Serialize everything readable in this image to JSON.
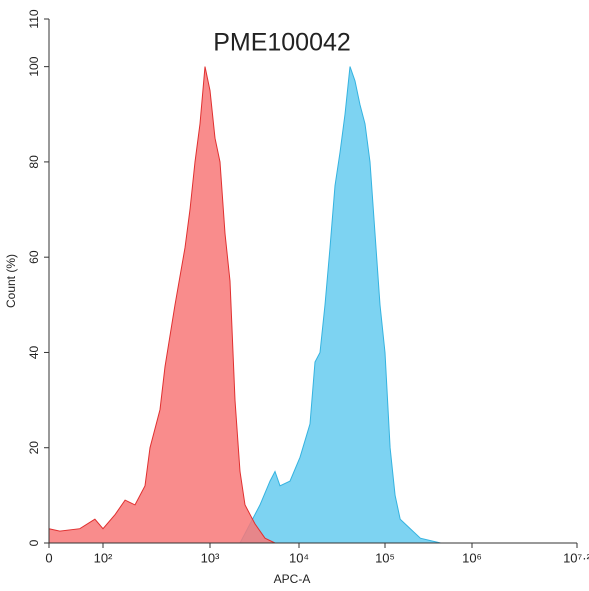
{
  "chart_data": {
    "type": "area",
    "title": "PME100042",
    "xlabel": "APC-A",
    "ylabel": "Count (%)",
    "xscale": "biexponential",
    "xlim": [
      0,
      15848932
    ],
    "xticks": [
      0,
      {
        "value": 100,
        "label": "10²"
      },
      {
        "value": 1000,
        "label": "10³"
      },
      {
        "value": 10000,
        "label": "10⁴"
      },
      {
        "value": 100000,
        "label": "10⁵"
      },
      {
        "value": 1000000,
        "label": "10⁶"
      },
      {
        "value": 15848932,
        "label": "10⁷·²"
      }
    ],
    "ylim": [
      0,
      110
    ],
    "yticks": [
      0,
      20,
      40,
      60,
      80,
      100,
      110
    ],
    "series": [
      {
        "color": "#7dd3f2",
        "edge": "#35b3e0",
        "x": [
          2174,
          3650,
          4720,
          5370,
          6120,
          7920,
          10270,
          13430,
          15350,
          17550,
          20060,
          22930,
          26210,
          29970,
          34260,
          39160,
          44770,
          51180,
          58510,
          66890,
          76480,
          87420,
          100000,
          114300,
          130700,
          149400,
          195300,
          255300,
          333700,
          436200
        ],
        "values": [
          0,
          8,
          13,
          15,
          12,
          13,
          18,
          25,
          38,
          40,
          50,
          62,
          75,
          82,
          90,
          100,
          97,
          92,
          88,
          80,
          65,
          50,
          40,
          20,
          10,
          5,
          3,
          1,
          0.5,
          0
        ]
      },
      {
        "color": "#f87878",
        "edge": "#e03030",
        "x": [
          0,
          20,
          57,
          85,
          100,
          130,
          161,
          199,
          247,
          275,
          341,
          380,
          471,
          584,
          650,
          724,
          807,
          898,
          1000,
          1138,
          1295,
          1474,
          1679,
          1910,
          2174,
          2474,
          3206,
          4150,
          5370
        ],
        "values": [
          3,
          2.5,
          3,
          5,
          3,
          6,
          9,
          8,
          12,
          20,
          28,
          37,
          50,
          62,
          70,
          80,
          88,
          100,
          95,
          85,
          80,
          65,
          55,
          30,
          15,
          8,
          4,
          1,
          0
        ]
      }
    ]
  }
}
